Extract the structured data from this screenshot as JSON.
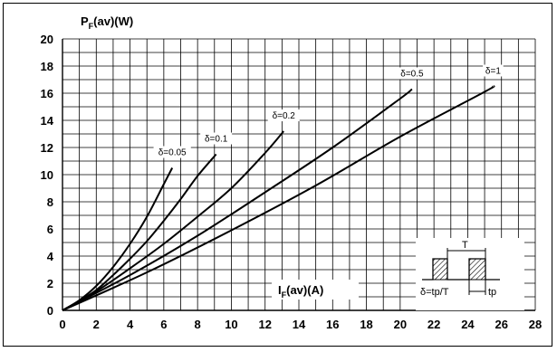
{
  "chart_data": {
    "type": "line",
    "title": "",
    "ylabel": {
      "main": "P",
      "sub": "F",
      "rest": "(av)(W)"
    },
    "xlabel": {
      "main": "I",
      "sub": "F",
      "rest": "(av)(A)"
    },
    "xlim": [
      0,
      28
    ],
    "ylim": [
      0,
      20
    ],
    "x_ticks": [
      0,
      2,
      4,
      6,
      8,
      10,
      12,
      14,
      16,
      18,
      20,
      22,
      24,
      26,
      28
    ],
    "y_ticks": [
      0,
      2,
      4,
      6,
      8,
      10,
      12,
      14,
      16,
      18,
      20
    ],
    "grid": true,
    "series": [
      {
        "name": "δ=0.05",
        "x": [
          0,
          1,
          2,
          3,
          4,
          5,
          6,
          6.5
        ],
        "y": [
          0,
          0.75,
          1.8,
          3.2,
          4.9,
          6.9,
          9.3,
          10.5
        ]
      },
      {
        "name": "δ=0.1",
        "x": [
          0,
          1,
          2,
          3,
          4,
          5,
          6,
          7,
          8,
          9.1
        ],
        "y": [
          0,
          0.7,
          1.5,
          2.6,
          3.8,
          5.1,
          6.6,
          8.2,
          9.9,
          11.5
        ]
      },
      {
        "name": "δ=0.2",
        "x": [
          0,
          2,
          4,
          6,
          8,
          10,
          12,
          13.1
        ],
        "y": [
          0,
          1.4,
          3.1,
          4.9,
          6.9,
          9.0,
          11.6,
          13.2
        ]
      },
      {
        "name": "δ=0.5",
        "x": [
          0,
          4,
          8,
          12,
          16,
          20,
          20.7
        ],
        "y": [
          0,
          2.6,
          5.5,
          8.7,
          12.0,
          15.6,
          16.3
        ]
      },
      {
        "name": "δ=1",
        "x": [
          0,
          5,
          10,
          15,
          20,
          25,
          25.5
        ],
        "y": [
          0,
          2.8,
          5.9,
          9.2,
          12.8,
          16.1,
          16.5
        ]
      }
    ],
    "inset": {
      "period_label": "T",
      "duty_label": "δ=tp/T",
      "pulse_label": "tp"
    }
  }
}
